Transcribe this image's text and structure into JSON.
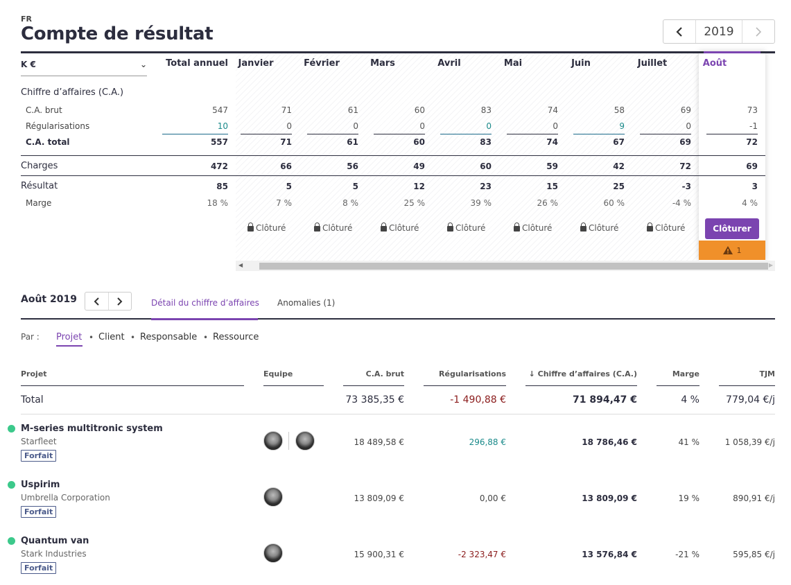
{
  "header": {
    "country": "FR",
    "title": "Compte de résultat",
    "year": "2019",
    "prev_icon": "chevron-left-icon",
    "next_icon": "chevron-right-icon"
  },
  "pl": {
    "unit": "K €",
    "columns": [
      "Total annuel",
      "Janvier",
      "Février",
      "Mars",
      "Avril",
      "Mai",
      "Juin",
      "Juillet",
      "Août"
    ],
    "sections": {
      "ca": "Chiffre d’affaires (C.A.)"
    },
    "rows": [
      {
        "label": "C.A. brut",
        "values": [
          "547",
          "71",
          "61",
          "60",
          "83",
          "74",
          "58",
          "69",
          "73"
        ]
      },
      {
        "label": "Régularisations",
        "values": [
          "10",
          "0",
          "0",
          "0",
          "0",
          "0",
          "9",
          "0",
          "-1"
        ]
      },
      {
        "label": "C.A. total",
        "values": [
          "557",
          "71",
          "61",
          "60",
          "83",
          "74",
          "67",
          "69",
          "72"
        ]
      },
      {
        "label": "Charges",
        "values": [
          "472",
          "66",
          "56",
          "49",
          "60",
          "59",
          "42",
          "72",
          "69"
        ]
      },
      {
        "label": "Résultat",
        "values": [
          "85",
          "5",
          "5",
          "12",
          "23",
          "15",
          "25",
          "-3",
          "3"
        ]
      },
      {
        "label": "Marge",
        "values": [
          "18 %",
          "7 %",
          "8 %",
          "25 %",
          "39 %",
          "26 %",
          "60 %",
          "-4 %",
          "4 %"
        ]
      }
    ],
    "closed_label": "Clôturé",
    "close_button": "Clôturer",
    "warning_count": "1",
    "colors": {
      "accent": "#7b44b0",
      "warning": "#f0902a",
      "positive": "#1a8a8a",
      "negative": "#8b1c1c"
    }
  },
  "detail": {
    "month_label": "Août 2019",
    "tabs": [
      "Détail du chiffre d’affaires",
      "Anomalies (1)"
    ],
    "par_label": "Par :",
    "filters": [
      "Projet",
      "Client",
      "Responsable",
      "Ressource"
    ],
    "headers": [
      "Projet",
      "Equipe",
      "C.A. brut",
      "Régularisations",
      "Chiffre d’affaires (C.A.)",
      "Marge",
      "TJM"
    ],
    "sort_icon": "arrow-down-icon",
    "total": {
      "label": "Total",
      "brut": "73 385,35 €",
      "regul": "-1 490,88 €",
      "ca": "71 894,47 €",
      "marge": "4 %",
      "tjm": "779,04 €/j"
    },
    "projects": [
      {
        "name": "M-series multitronic system",
        "client": "Starfleet",
        "badge": "Forfait",
        "brut": "18 489,58 €",
        "regul": "296,88 €",
        "ca": "18 786,46 €",
        "marge": "41 %",
        "tjm": "1 058,39 €/j"
      },
      {
        "name": "Uspirim",
        "client": "Umbrella Corporation",
        "badge": "Forfait",
        "brut": "13 809,09 €",
        "regul": "0,00 €",
        "ca": "13 809,09 €",
        "marge": "19 %",
        "tjm": "890,91 €/j"
      },
      {
        "name": "Quantum van",
        "client": "Stark Industries",
        "badge": "Forfait",
        "brut": "15 900,31 €",
        "regul": "-2 323,47 €",
        "ca": "13 576,84 €",
        "marge": "-21 %",
        "tjm": "595,85 €/j"
      }
    ]
  }
}
